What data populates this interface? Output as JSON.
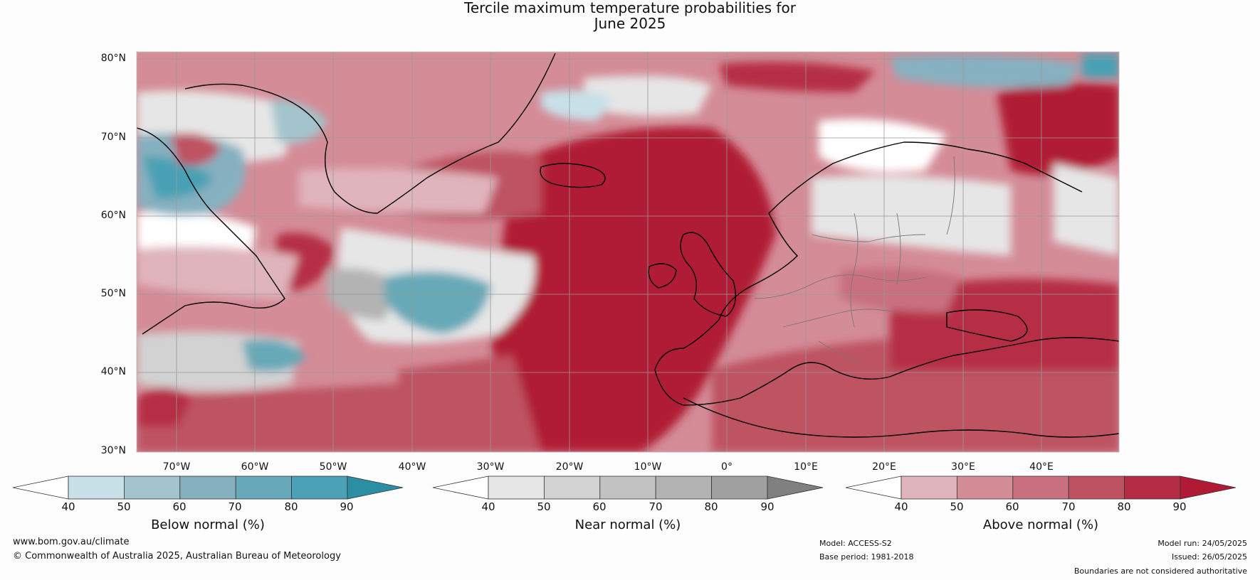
{
  "title": {
    "line1": "Tercile maximum temperature probabilities for",
    "line2": "June 2025"
  },
  "map": {
    "lat_labels": [
      "80°N",
      "70°N",
      "60°N",
      "50°N",
      "40°N",
      "30°N"
    ],
    "lon_labels": [
      "70°W",
      "60°W",
      "50°W",
      "40°W",
      "30°W",
      "20°W",
      "10°W",
      "0°",
      "10°E",
      "20°E",
      "30°E",
      "40°E"
    ]
  },
  "colorbars": [
    {
      "label": "Below normal (%)",
      "ticks": [
        "40",
        "50",
        "60",
        "70",
        "80",
        "90"
      ],
      "colors": [
        "#ffffff",
        "#c8e0e8",
        "#a3c4cc",
        "#86b0c0",
        "#67a9b8",
        "#4aa0b4",
        "#2b8ea3"
      ]
    },
    {
      "label": "Near normal (%)",
      "ticks": [
        "40",
        "50",
        "60",
        "70",
        "80",
        "90"
      ],
      "colors": [
        "#ffffff",
        "#e6e6e6",
        "#d2d2d2",
        "#c2c2c2",
        "#b3b3b3",
        "#a0a0a0",
        "#808080"
      ]
    },
    {
      "label": "Above normal (%)",
      "ticks": [
        "40",
        "50",
        "60",
        "70",
        "80",
        "90"
      ],
      "colors": [
        "#ffffff",
        "#e0b4bc",
        "#d48c97",
        "#c8707e",
        "#be5262",
        "#b52d44",
        "#b01a35"
      ]
    }
  ],
  "footer": {
    "website": "www.bom.gov.au/climate",
    "copyright": "© Commonwealth of Australia 2025, Australian Bureau of Meteorology",
    "model": "Model: ACCESS-S2",
    "base_period": "Base period: 1981-2018",
    "model_run": "Model run: 24/05/2025",
    "issued": "Issued: 26/05/2025",
    "disclaimer": "Boundaries are not considered authoritative"
  }
}
